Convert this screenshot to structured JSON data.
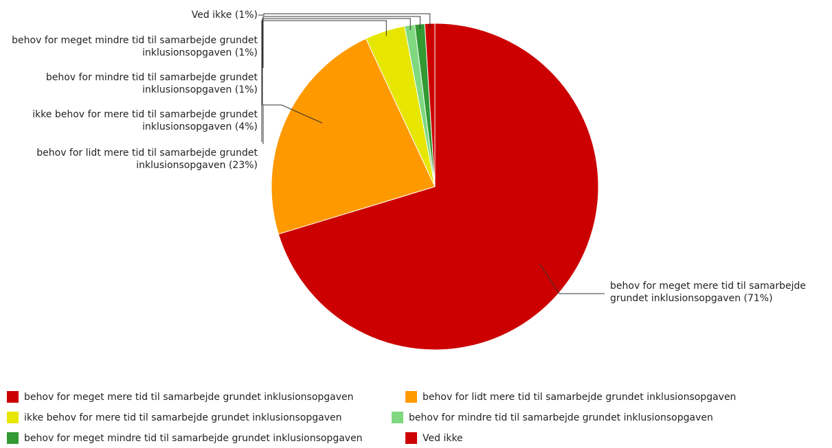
{
  "chart_data": {
    "type": "pie",
    "categories": [
      "behov for meget mere tid til samarbejde grundet inklusionsopgaven",
      "behov for lidt mere tid til samarbejde grundet inklusionsopgaven",
      "ikke behov for mere tid til samarbejde grundet inklusionsopgaven",
      "behov for mindre tid til samarbejde grundet inklusionsopgaven",
      "behov for meget mindre tid til samarbejde grundet inklusionsopgaven",
      "Ved ikke"
    ],
    "values": [
      71,
      23,
      4,
      1,
      1,
      1
    ],
    "value_labels": [
      "(71%)",
      "(23%)",
      "(4%)",
      "(1%)",
      "(1%)",
      "(1%)"
    ],
    "colors": [
      "#cc0000",
      "#ff9900",
      "#e6e600",
      "#80d880",
      "#339933",
      "#cc0000"
    ],
    "legend": "bottom"
  }
}
